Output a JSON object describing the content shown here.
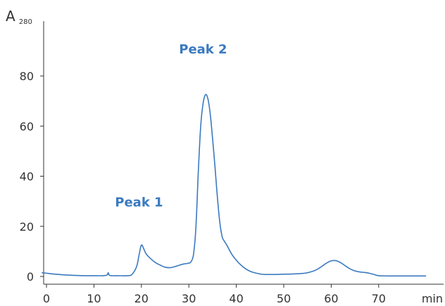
{
  "chart_data": {
    "type": "line",
    "title": "",
    "ylabel": {
      "main": "A",
      "subscript": "280"
    },
    "xlabel": "min",
    "xlim": [
      0,
      80
    ],
    "ylim": [
      -1,
      100
    ],
    "x_ticks": [
      0,
      10,
      20,
      30,
      40,
      50,
      60,
      70
    ],
    "y_ticks": [
      0,
      20,
      40,
      60,
      80
    ],
    "grid": false,
    "series": [
      {
        "color": "#3a7abf",
        "x": [
          -1,
          0,
          2,
          5,
          8,
          10,
          12,
          12.8,
          13,
          13.2,
          13.6,
          15,
          17,
          18,
          19,
          19.5,
          20,
          20.5,
          21,
          22,
          23,
          24,
          25,
          26,
          27,
          28,
          29,
          30,
          30.5,
          31,
          31.5,
          32,
          32.5,
          33,
          33.5,
          34,
          34.5,
          35,
          35.5,
          36,
          36.5,
          37,
          37.5,
          38,
          39,
          40,
          41,
          42,
          43,
          44,
          45,
          46,
          48,
          50,
          52,
          54,
          55,
          56,
          57,
          58,
          59,
          60,
          61,
          62,
          63,
          64,
          65,
          66,
          67,
          68,
          69,
          70,
          72,
          75,
          80
        ],
        "y": [
          1.5,
          1.3,
          0.9,
          0.5,
          0.3,
          0.3,
          0.3,
          0.6,
          1.5,
          0.6,
          0.3,
          0.3,
          0.3,
          0.8,
          4.0,
          8.5,
          12.5,
          11.0,
          9.0,
          7.0,
          5.5,
          4.5,
          3.7,
          3.5,
          3.9,
          4.5,
          5.0,
          5.3,
          6.0,
          9.0,
          20.0,
          42.0,
          60.0,
          69.0,
          72.5,
          71.0,
          65.0,
          55.0,
          44.0,
          32.0,
          22.0,
          16.0,
          14.0,
          12.5,
          9.0,
          6.5,
          4.5,
          3.0,
          2.0,
          1.4,
          1.0,
          0.8,
          0.8,
          0.9,
          1.0,
          1.2,
          1.5,
          2.0,
          2.8,
          4.0,
          5.3,
          6.2,
          6.3,
          5.5,
          4.2,
          3.0,
          2.2,
          1.8,
          1.6,
          1.3,
          0.8,
          0.3,
          0.2,
          0.2,
          0.2
        ]
      }
    ],
    "annotations": [
      {
        "text": "Peak 1",
        "x": 19.5,
        "y": 28,
        "color": "#3a7abf"
      },
      {
        "text": "Peak 2",
        "x": 33,
        "y": 89,
        "color": "#3a7abf"
      }
    ]
  }
}
